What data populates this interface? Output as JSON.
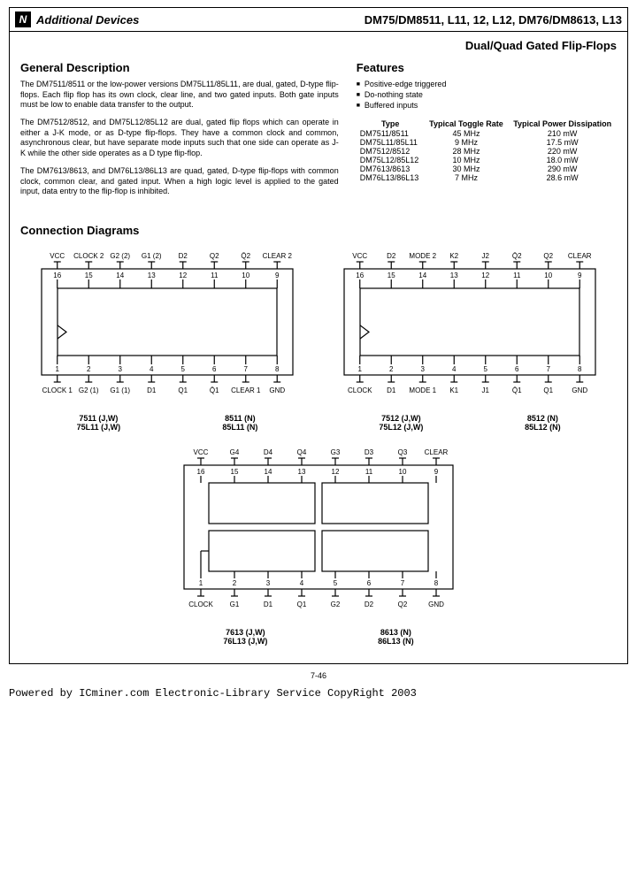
{
  "header": {
    "left": "Additional Devices",
    "right": "DM75/DM8511, L11, 12, L12, DM76/DM8613, L13",
    "subtitle": "Dual/Quad Gated Flip-Flops"
  },
  "description": {
    "heading": "General Description",
    "p1": "The DM7511/8511 or the low-power versions DM75L11/85L11, are dual, gated, D-type flip-flops. Each flip flop has its own clock, clear line, and two gated inputs. Both gate inputs must be low to enable data transfer to the output.",
    "p2": "The DM7512/8512, and DM75L12/85L12 are dual, gated flip flops which can operate in either a J-K mode, or as D-type flip-flops. They have a common clock and common, asynchronous clear, but have separate mode inputs such that one side can operate as J-K while the other side operates as a D type flip-flop.",
    "p3": "The DM7613/8613, and DM76L13/86L13 are quad, gated, D-type flip-flops with common clock, common clear, and gated input. When a high logic level is applied to the gated input, data entry to the flip-flop is inhibited."
  },
  "features": {
    "heading": "Features",
    "items": [
      "Positive-edge triggered",
      "Do-nothing state",
      "Buffered inputs"
    ]
  },
  "spec_table": {
    "columns": [
      "Type",
      "Typical Toggle Rate",
      "Typical Power Dissipation"
    ],
    "rows": [
      [
        "DM7511/8511",
        "45 MHz",
        "210 mW"
      ],
      [
        "DM75L11/85L11",
        "9 MHz",
        "17.5 mW"
      ],
      [
        "DM7512/8512",
        "28 MHz",
        "220 mW"
      ],
      [
        "DM75L12/85L12",
        "10 MHz",
        "18.0 mW"
      ],
      [
        "DM7613/8613",
        "30 MHz",
        "290 mW"
      ],
      [
        "DM76L13/86L13",
        "7 MHz",
        "28.6 mW"
      ]
    ]
  },
  "diagrams": {
    "heading": "Connection Diagrams",
    "chip1": {
      "top_labels": [
        "VCC",
        "CLOCK 2",
        "G2 (2)",
        "G1 (2)",
        "D2",
        "Q2",
        "Q̄2",
        "CLEAR 2"
      ],
      "top_pins": [
        "16",
        "15",
        "14",
        "13",
        "12",
        "11",
        "10",
        "9"
      ],
      "bot_pins": [
        "1",
        "2",
        "3",
        "4",
        "5",
        "6",
        "7",
        "8"
      ],
      "bot_labels": [
        "CLOCK 1",
        "G2 (1)",
        "G1 (1)",
        "D1",
        "Q1",
        "Q̄1",
        "CLEAR 1",
        "GND"
      ],
      "parts_left": "7511 (J,W)\n75L11 (J,W)",
      "parts_right": "8511 (N)\n85L11 (N)"
    },
    "chip2": {
      "top_labels": [
        "VCC",
        "D2",
        "MODE 2",
        "K2",
        "J2",
        "Q̄2",
        "Q2",
        "CLEAR"
      ],
      "top_pins": [
        "16",
        "15",
        "14",
        "13",
        "12",
        "11",
        "10",
        "9"
      ],
      "bot_pins": [
        "1",
        "2",
        "3",
        "4",
        "5",
        "6",
        "7",
        "8"
      ],
      "bot_labels": [
        "CLOCK",
        "D1",
        "MODE 1",
        "K1",
        "J1",
        "Q̄1",
        "Q1",
        "GND"
      ],
      "parts_left": "7512 (J,W)\n75L12 (J,W)",
      "parts_right": "8512 (N)\n85L12 (N)"
    },
    "chip3": {
      "top_labels": [
        "VCC",
        "G4",
        "D4",
        "Q4",
        "G3",
        "D3",
        "Q3",
        "CLEAR"
      ],
      "top_pins": [
        "16",
        "15",
        "14",
        "13",
        "12",
        "11",
        "10",
        "9"
      ],
      "bot_pins": [
        "1",
        "2",
        "3",
        "4",
        "5",
        "6",
        "7",
        "8"
      ],
      "bot_labels": [
        "CLOCK",
        "G1",
        "D1",
        "Q1",
        "G2",
        "D2",
        "Q2",
        "GND"
      ],
      "parts_left": "7613 (J,W)\n76L13 (J,W)",
      "parts_right": "8613 (N)\n86L13 (N)"
    }
  },
  "page_number": "7-46",
  "footer": "Powered by ICminer.com Electronic-Library Service CopyRight 2003",
  "style": {
    "stroke": "#000000",
    "stroke_width": 1.2,
    "chip_body_fill": "#ffffff"
  }
}
